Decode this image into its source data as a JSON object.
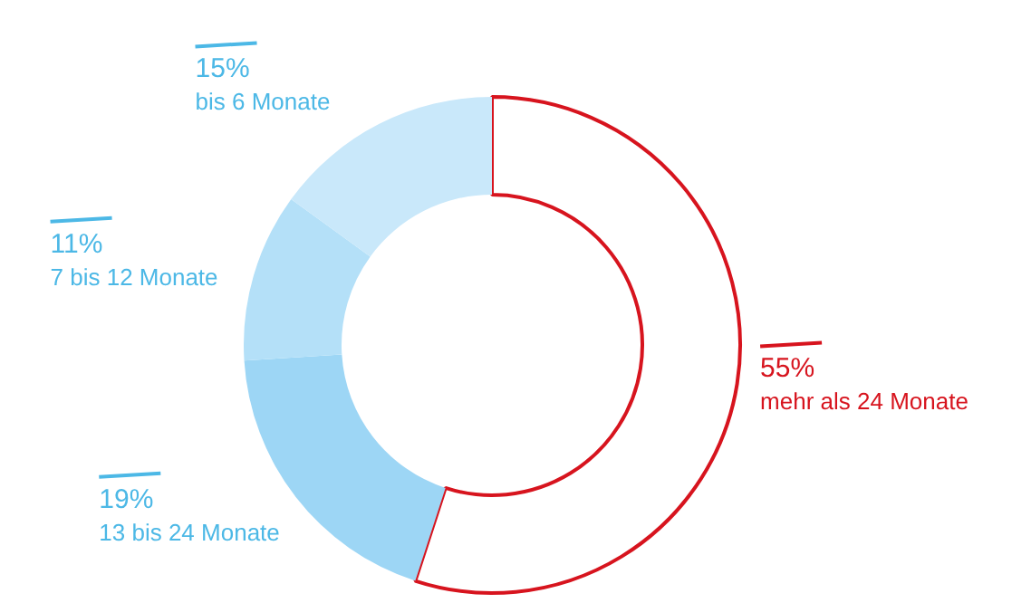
{
  "chart_data": {
    "type": "donut",
    "categories": [
      "mehr als 24 Monate",
      "13 bis 24 Monate",
      "7 bis 12 Monate",
      "bis 6 Monate"
    ],
    "values": [
      55,
      19,
      11,
      15
    ],
    "colors": [
      "#d7141e",
      "#9dd6f5",
      "#b4e0f8",
      "#c9e8fa"
    ],
    "value_labels": [
      "55%",
      "19%",
      "11%",
      "15%"
    ]
  }
}
